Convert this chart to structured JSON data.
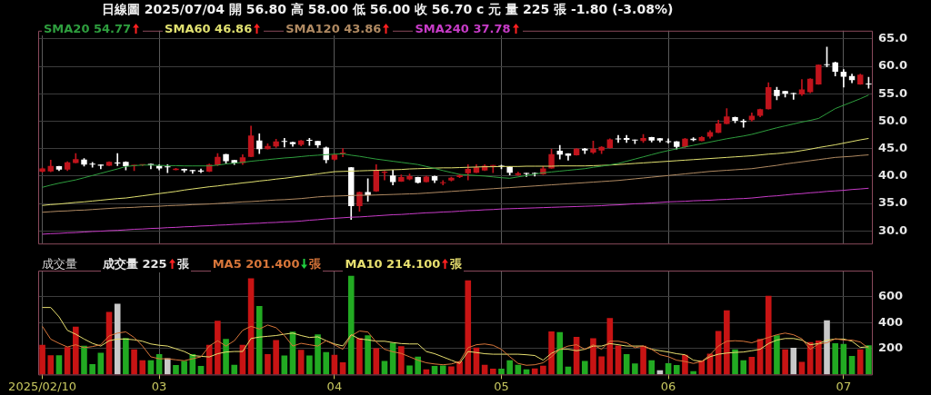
{
  "chart_data": [
    {
      "type": "candlestick",
      "title": "日線圖 2025/07/04 開 56.80 高 58.00 低 56.00 收 56.70 c 元 量 225 張 -1.80 (-3.08%)",
      "categories": [
        "2025/02/10",
        null,
        null,
        null,
        null,
        null,
        null,
        null,
        null,
        null,
        null,
        null,
        null,
        null,
        "03",
        null,
        null,
        null,
        null,
        null,
        null,
        null,
        null,
        null,
        null,
        null,
        null,
        null,
        null,
        null,
        null,
        null,
        null,
        null,
        null,
        "04",
        null,
        null,
        null,
        null,
        null,
        null,
        null,
        null,
        null,
        null,
        null,
        null,
        null,
        null,
        null,
        null,
        null,
        null,
        null,
        "05",
        null,
        null,
        null,
        null,
        null,
        null,
        null,
        null,
        null,
        null,
        null,
        null,
        null,
        null,
        null,
        null,
        null,
        null,
        null,
        "06",
        null,
        null,
        null,
        null,
        null,
        null,
        null,
        null,
        null,
        null,
        null,
        null,
        null,
        null,
        null,
        null,
        null,
        null,
        null,
        null,
        "07",
        null,
        null,
        null
      ],
      "ohlc": [
        [
          40.8,
          41.5,
          40.7,
          41.4
        ],
        [
          40.85,
          42.9,
          40.8,
          41.85
        ],
        [
          41.8,
          41.8,
          41.0,
          41.2
        ],
        [
          41.2,
          42.6,
          41.0,
          42.5
        ],
        [
          42.4,
          44.1,
          42.4,
          43.1
        ],
        [
          43.0,
          43.2,
          41.8,
          42.1
        ],
        [
          42.15,
          42.5,
          41.6,
          42.1
        ],
        [
          42.1,
          42.1,
          41.3,
          41.9
        ],
        [
          41.9,
          42.6,
          41.9,
          42.6
        ],
        [
          42.4,
          44.1,
          41.9,
          42.3
        ],
        [
          42.6,
          42.6,
          41.1,
          41.8
        ],
        [
          41.9,
          42.0,
          41.0,
          42.0
        ],
        [
          42.0,
          42.1,
          41.9,
          42.05
        ],
        [
          42.2,
          42.2,
          41.3,
          41.95
        ],
        [
          41.9,
          42.1,
          41.1,
          41.4
        ],
        [
          41.65,
          42.1,
          40.6,
          41.6
        ],
        [
          41.1,
          41.4,
          41.1,
          41.35
        ],
        [
          41.3,
          41.3,
          40.7,
          41.0
        ],
        [
          41.1,
          41.1,
          40.5,
          40.9
        ],
        [
          41.0,
          41.3,
          40.6,
          40.8
        ],
        [
          40.8,
          42.2,
          40.8,
          42.1
        ],
        [
          42.0,
          44.1,
          41.9,
          43.5
        ],
        [
          44.0,
          44.0,
          42.3,
          42.7
        ],
        [
          42.9,
          42.9,
          42.1,
          42.3
        ],
        [
          42.4,
          43.9,
          42.1,
          43.4
        ],
        [
          43.5,
          49.1,
          43.5,
          47.4
        ],
        [
          46.5,
          47.7,
          44.1,
          44.9
        ],
        [
          44.9,
          45.9,
          44.9,
          45.5
        ],
        [
          45.4,
          46.7,
          45.2,
          46.3
        ],
        [
          46.3,
          46.9,
          45.3,
          46.25
        ],
        [
          46.2,
          46.2,
          45.4,
          45.8
        ],
        [
          45.7,
          46.5,
          45.5,
          46.5
        ],
        [
          46.5,
          46.9,
          45.6,
          46.45
        ],
        [
          46.4,
          46.4,
          45.2,
          45.6
        ],
        [
          45.2,
          45.3,
          42.4,
          42.9
        ],
        [
          43.0,
          44.0,
          42.9,
          43.9
        ],
        [
          44.1,
          45.0,
          43.5,
          44.2
        ],
        [
          41.6,
          41.6,
          32.1,
          34.5
        ],
        [
          34.5,
          37.1,
          33.6,
          37.1
        ],
        [
          37.1,
          39.5,
          35.4,
          36.5
        ],
        [
          37.2,
          42.1,
          37.2,
          41.0
        ],
        [
          40.6,
          40.9,
          39.3,
          40.8
        ],
        [
          40.1,
          41.1,
          38.4,
          38.9
        ],
        [
          39.0,
          40.2,
          39.0,
          39.8
        ],
        [
          39.4,
          40.4,
          39.3,
          40.0
        ],
        [
          39.8,
          39.8,
          38.7,
          38.8
        ],
        [
          38.9,
          40.0,
          38.9,
          39.9
        ],
        [
          40.0,
          40.0,
          38.8,
          39.2
        ],
        [
          38.7,
          39.2,
          38.4,
          38.75
        ],
        [
          39.2,
          39.8,
          39.1,
          39.7
        ],
        [
          39.8,
          40.3,
          39.7,
          40.2
        ],
        [
          40.5,
          42.1,
          39.3,
          41.3
        ],
        [
          40.6,
          42.1,
          40.6,
          41.6
        ],
        [
          41.0,
          42.1,
          41.0,
          41.9
        ],
        [
          41.85,
          41.95,
          40.6,
          41.9
        ],
        [
          41.8,
          42.0,
          41.3,
          41.7
        ],
        [
          41.7,
          41.75,
          40.2,
          40.6
        ],
        [
          40.2,
          40.7,
          40.1,
          40.5
        ],
        [
          40.45,
          40.5,
          39.9,
          40.4
        ],
        [
          40.5,
          40.6,
          40.0,
          40.4
        ],
        [
          40.3,
          41.8,
          40.3,
          41.4
        ],
        [
          41.4,
          44.9,
          41.4,
          44.0
        ],
        [
          44.6,
          45.6,
          43.1,
          43.9
        ],
        [
          44.1,
          44.1,
          42.9,
          43.7
        ],
        [
          43.8,
          45.0,
          43.8,
          45.0
        ],
        [
          45.0,
          45.05,
          44.1,
          44.65
        ],
        [
          44.3,
          46.4,
          44.1,
          45.0
        ],
        [
          44.65,
          45.4,
          44.1,
          45.3
        ],
        [
          45.1,
          46.8,
          45.1,
          46.7
        ],
        [
          46.8,
          47.4,
          46.1,
          46.7
        ],
        [
          46.95,
          47.4,
          46.1,
          46.6
        ],
        [
          46.6,
          46.6,
          45.9,
          46.5
        ],
        [
          46.4,
          47.6,
          46.1,
          46.95
        ],
        [
          47.1,
          47.1,
          46.2,
          46.5
        ],
        [
          46.9,
          46.9,
          46.2,
          46.5
        ],
        [
          46.25,
          46.8,
          46.0,
          46.2
        ],
        [
          46.3,
          46.3,
          44.9,
          45.3
        ],
        [
          45.3,
          46.9,
          45.2,
          46.8
        ],
        [
          46.8,
          47.0,
          46.4,
          46.55
        ],
        [
          46.4,
          47.2,
          46.4,
          47.1
        ],
        [
          47.2,
          48.3,
          46.9,
          48.0
        ],
        [
          47.9,
          50.2,
          47.9,
          49.6
        ],
        [
          49.5,
          52.3,
          49.5,
          50.85
        ],
        [
          50.75,
          50.75,
          49.7,
          50.1
        ],
        [
          50.1,
          50.3,
          48.9,
          49.85
        ],
        [
          50.2,
          51.5,
          50.0,
          51.0
        ],
        [
          51.0,
          52.2,
          50.8,
          52.2
        ],
        [
          52.2,
          57.0,
          52.2,
          56.2
        ],
        [
          55.7,
          56.2,
          53.9,
          54.6
        ],
        [
          55.5,
          55.5,
          54.4,
          55.0
        ],
        [
          55.1,
          55.1,
          54.0,
          54.95
        ],
        [
          54.9,
          57.6,
          54.7,
          55.8
        ],
        [
          55.3,
          57.75,
          55.2,
          57.75
        ],
        [
          56.7,
          60.3,
          56.7,
          60.3
        ],
        [
          60.3,
          63.5,
          59.9,
          60.2
        ],
        [
          60.7,
          60.8,
          58.25,
          59.0
        ],
        [
          59.0,
          59.4,
          56.2,
          58.1
        ],
        [
          58.25,
          58.6,
          57.0,
          57.5
        ],
        [
          56.7,
          58.6,
          56.7,
          58.5
        ],
        [
          56.8,
          58.0,
          56.0,
          56.7
        ]
      ],
      "colors": [
        "#c0141c",
        "#c0141c",
        "#ffffff",
        "#c0141c",
        "#c0141c",
        "#ffffff",
        "#ffffff",
        "#ffffff",
        "#c0141c",
        "#ffffff",
        "#ffffff",
        "#c0141c",
        "#c0141c",
        "#ffffff",
        "#ffffff",
        "#ffffff",
        "#c0141c",
        "#ffffff",
        "#ffffff",
        "#ffffff",
        "#c0141c",
        "#c0141c",
        "#ffffff",
        "#ffffff",
        "#c0141c",
        "#c0141c",
        "#ffffff",
        "#c0141c",
        "#c0141c",
        "#ffffff",
        "#ffffff",
        "#c0141c",
        "#ffffff",
        "#ffffff",
        "#ffffff",
        "#c0141c",
        "#c0141c",
        "#ffffff",
        "#c0141c",
        "#ffffff",
        "#c0141c",
        "#c0141c",
        "#ffffff",
        "#c0141c",
        "#c0141c",
        "#ffffff",
        "#c0141c",
        "#ffffff",
        "#c0141c",
        "#c0141c",
        "#c0141c",
        "#c0141c",
        "#c0141c",
        "#c0141c",
        "#c0141c",
        "#ffffff",
        "#ffffff",
        "#c0141c",
        "#ffffff",
        "#ffffff",
        "#c0141c",
        "#c0141c",
        "#ffffff",
        "#ffffff",
        "#c0141c",
        "#ffffff",
        "#c0141c",
        "#c0141c",
        "#c0141c",
        "#ffffff",
        "#ffffff",
        "#ffffff",
        "#c0141c",
        "#ffffff",
        "#ffffff",
        "#ffffff",
        "#ffffff",
        "#c0141c",
        "#ffffff",
        "#c0141c",
        "#c0141c",
        "#c0141c",
        "#c0141c",
        "#ffffff",
        "#ffffff",
        "#c0141c",
        "#c0141c",
        "#c0141c",
        "#ffffff",
        "#ffffff",
        "#ffffff",
        "#c0141c",
        "#c0141c",
        "#c0141c",
        "#ffffff",
        "#ffffff",
        "#ffffff",
        "#ffffff",
        "#c0141c",
        "#ffffff"
      ],
      "series": [
        {
          "name": "SMA20 54.77",
          "type": "line",
          "color": "#2e9e3e",
          "values": [
            37.95,
            38.35,
            38.7,
            39.0,
            39.3,
            39.7,
            40.1,
            40.5,
            40.9,
            41.3,
            41.75,
            41.9,
            42.0,
            42.0,
            41.95,
            41.9,
            41.9,
            41.85,
            41.85,
            41.85,
            41.85,
            42.0,
            42.2,
            42.35,
            42.5,
            42.7,
            42.85,
            43.0,
            43.15,
            43.3,
            43.4,
            43.55,
            43.7,
            43.8,
            43.9,
            44.0,
            44.05,
            43.8,
            43.6,
            43.35,
            43.1,
            42.9,
            42.7,
            42.5,
            42.3,
            42.1,
            41.75,
            41.4,
            41.0,
            40.65,
            40.3,
            40.2,
            40.1,
            40.0,
            39.85,
            39.7,
            39.6,
            39.85,
            40.1,
            40.35,
            40.6,
            40.75,
            40.9,
            41.05,
            41.2,
            41.35,
            41.6,
            41.8,
            42.05,
            42.3,
            42.7,
            43.1,
            43.5,
            43.9,
            44.3,
            44.65,
            44.95,
            45.3,
            45.6,
            45.9,
            46.2,
            46.5,
            46.8,
            47.05,
            47.3,
            47.6,
            48.0,
            48.4,
            48.8,
            49.15,
            49.5,
            49.85,
            50.15,
            50.5,
            51.4,
            52.3,
            52.9,
            53.5,
            54.1,
            54.77
          ]
        },
        {
          "name": "SMA60 46.86",
          "type": "line",
          "color": "#e0e070",
          "values": [
            34.65,
            34.8,
            34.9,
            35.05,
            35.2,
            35.3,
            35.45,
            35.6,
            35.75,
            35.9,
            36.0,
            36.2,
            36.4,
            36.6,
            36.8,
            37.0,
            37.2,
            37.45,
            37.65,
            37.85,
            38.05,
            38.2,
            38.4,
            38.55,
            38.75,
            38.9,
            39.1,
            39.25,
            39.45,
            39.6,
            39.8,
            40.0,
            40.2,
            40.4,
            40.6,
            40.8,
            40.85,
            40.9,
            40.95,
            41.0,
            41.05,
            41.1,
            41.15,
            41.2,
            41.3,
            41.35,
            41.4,
            41.45,
            41.5,
            41.5,
            41.55,
            41.6,
            41.65,
            41.7,
            41.7,
            41.75,
            41.75,
            41.75,
            41.8,
            41.8,
            41.8,
            41.8,
            41.85,
            41.85,
            41.85,
            41.85,
            41.9,
            41.95,
            42.0,
            42.1,
            42.2,
            42.3,
            42.4,
            42.5,
            42.6,
            42.7,
            42.8,
            42.9,
            43.0,
            43.1,
            43.2,
            43.3,
            43.4,
            43.5,
            43.6,
            43.7,
            43.85,
            44.0,
            44.1,
            44.25,
            44.4,
            44.65,
            44.9,
            45.2,
            45.45,
            45.7,
            46.0,
            46.3,
            46.6,
            46.86
          ]
        },
        {
          "name": "SMA120 43.86",
          "type": "line",
          "color": "#b08a62",
          "values": [
            33.4,
            33.5,
            33.6,
            33.65,
            33.75,
            33.8,
            33.9,
            34.0,
            34.1,
            34.2,
            34.25,
            34.3,
            34.4,
            34.45,
            34.5,
            34.6,
            34.65,
            34.7,
            34.8,
            34.85,
            34.9,
            35.0,
            35.1,
            35.2,
            35.3,
            35.35,
            35.45,
            35.55,
            35.65,
            35.7,
            35.8,
            35.9,
            36.05,
            36.2,
            36.3,
            36.35,
            36.4,
            36.45,
            36.5,
            36.5,
            36.55,
            36.6,
            36.65,
            36.7,
            36.75,
            36.8,
            36.9,
            37.0,
            37.1,
            37.2,
            37.3,
            37.4,
            37.5,
            37.6,
            37.7,
            37.8,
            37.9,
            38.0,
            38.1,
            38.2,
            38.3,
            38.4,
            38.5,
            38.6,
            38.7,
            38.8,
            38.9,
            39.0,
            39.1,
            39.2,
            39.35,
            39.5,
            39.65,
            39.8,
            39.95,
            40.1,
            40.25,
            40.4,
            40.55,
            40.7,
            40.85,
            40.95,
            41.05,
            41.15,
            41.25,
            41.35,
            41.55,
            41.75,
            41.95,
            42.2,
            42.4,
            42.6,
            42.8,
            43.0,
            43.2,
            43.4,
            43.5,
            43.6,
            43.75,
            43.86
          ]
        },
        {
          "name": "SMA240 37.78",
          "type": "line",
          "color": "#c83cc8",
          "values": [
            29.4,
            29.5,
            29.55,
            29.65,
            29.7,
            29.8,
            29.9,
            29.95,
            30.05,
            30.1,
            30.2,
            30.3,
            30.35,
            30.45,
            30.5,
            30.6,
            30.65,
            30.75,
            30.8,
            30.9,
            30.95,
            31.05,
            31.1,
            31.2,
            31.25,
            31.35,
            31.4,
            31.5,
            31.55,
            31.65,
            31.7,
            31.8,
            31.95,
            32.05,
            32.2,
            32.3,
            32.4,
            32.5,
            32.55,
            32.65,
            32.75,
            32.85,
            32.95,
            33.0,
            33.1,
            33.2,
            33.3,
            33.35,
            33.45,
            33.5,
            33.6,
            33.7,
            33.75,
            33.85,
            33.9,
            34.0,
            34.05,
            34.1,
            34.15,
            34.2,
            34.25,
            34.3,
            34.35,
            34.4,
            34.45,
            34.5,
            34.55,
            34.6,
            34.7,
            34.75,
            34.85,
            34.95,
            35.0,
            35.1,
            35.2,
            35.3,
            35.35,
            35.4,
            35.5,
            35.55,
            35.6,
            35.7,
            35.75,
            35.85,
            35.9,
            36.0,
            36.15,
            36.3,
            36.4,
            36.55,
            36.7,
            36.8,
            36.95,
            37.05,
            37.2,
            37.3,
            37.4,
            37.55,
            37.65,
            37.78
          ]
        }
      ],
      "ylim": [
        27.7,
        66.5
      ],
      "yticks": [
        {
          "value": 30,
          "label": "30.0"
        },
        {
          "value": 35,
          "label": "35.0"
        },
        {
          "value": 40,
          "label": "40.0"
        },
        {
          "value": 45,
          "label": "45.0"
        },
        {
          "value": 50,
          "label": "50.0"
        },
        {
          "value": 55,
          "label": "55.0"
        },
        {
          "value": 60,
          "label": "60.0"
        },
        {
          "value": 65,
          "label": "65.0"
        }
      ],
      "grid": true,
      "tick_labels": "y",
      "legend": "top left"
    },
    {
      "type": "bar",
      "title": "成交量",
      "categories": [
        "2025/02/10",
        null,
        null,
        null,
        null,
        null,
        null,
        null,
        null,
        null,
        null,
        null,
        null,
        null,
        "03",
        null,
        null,
        null,
        null,
        null,
        null,
        null,
        null,
        null,
        null,
        null,
        null,
        null,
        null,
        null,
        null,
        null,
        null,
        null,
        null,
        "04",
        null,
        null,
        null,
        null,
        null,
        null,
        null,
        null,
        null,
        null,
        null,
        null,
        null,
        null,
        null,
        null,
        null,
        null,
        null,
        "05",
        null,
        null,
        null,
        null,
        null,
        null,
        null,
        null,
        null,
        null,
        null,
        null,
        null,
        null,
        null,
        null,
        null,
        null,
        null,
        "06",
        null,
        null,
        null,
        null,
        null,
        null,
        null,
        null,
        null,
        null,
        null,
        null,
        null,
        null,
        null,
        null,
        null,
        null,
        null,
        null,
        "07",
        null,
        null,
        null
      ],
      "series": [
        {
          "name": "成交量 225 張",
          "values": [
            229,
            148,
            148,
            210,
            369,
            221,
            79,
            167,
            481,
            544,
            281,
            194,
            110,
            110,
            156,
            125,
            73,
            104,
            156,
            65,
            229,
            413,
            273,
            75,
            229,
            740,
            527,
            156,
            265,
            146,
            330,
            190,
            146,
            308,
            173,
            152,
            94,
            760,
            281,
            302,
            202,
            104,
            244,
            217,
            69,
            138,
            40,
            65,
            69,
            63,
            100,
            725,
            208,
            75,
            44,
            44,
            110,
            75,
            40,
            46,
            67,
            331,
            327,
            61,
            290,
            104,
            279,
            140,
            435,
            223,
            156,
            85,
            221,
            110,
            33,
            87,
            73,
            152,
            25,
            108,
            160,
            335,
            494,
            194,
            110,
            135,
            273,
            606,
            302,
            194,
            206,
            98,
            250,
            262,
            417,
            240,
            236,
            142,
            194,
            225
          ],
          "colors": [
            "#c81414",
            "#c81414",
            "#22aa22",
            "#c81414",
            "#c81414",
            "#22aa22",
            "#22aa22",
            "#22aa22",
            "#c81414",
            "#c8c8c8",
            "#22aa22",
            "#c81414",
            "#c81414",
            "#22aa22",
            "#22aa22",
            "#c8c8c8",
            "#22aa22",
            "#22aa22",
            "#22aa22",
            "#22aa22",
            "#c81414",
            "#c81414",
            "#22aa22",
            "#22aa22",
            "#c81414",
            "#c81414",
            "#22aa22",
            "#c81414",
            "#c81414",
            "#22aa22",
            "#22aa22",
            "#c81414",
            "#22aa22",
            "#22aa22",
            "#22aa22",
            "#c81414",
            "#c81414",
            "#22aa22",
            "#c81414",
            "#22aa22",
            "#c81414",
            "#22aa22",
            "#22aa22",
            "#c81414",
            "#22aa22",
            "#22aa22",
            "#c81414",
            "#22aa22",
            "#22aa22",
            "#c81414",
            "#c81414",
            "#c81414",
            "#c81414",
            "#c81414",
            "#c81414",
            "#22aa22",
            "#22aa22",
            "#22aa22",
            "#22aa22",
            "#c81414",
            "#c81414",
            "#c81414",
            "#22aa22",
            "#22aa22",
            "#c81414",
            "#22aa22",
            "#c81414",
            "#c81414",
            "#c81414",
            "#c81414",
            "#22aa22",
            "#22aa22",
            "#c81414",
            "#22aa22",
            "#c8c8c8",
            "#22aa22",
            "#22aa22",
            "#c81414",
            "#22aa22",
            "#c81414",
            "#c81414",
            "#c81414",
            "#c81414",
            "#22aa22",
            "#22aa22",
            "#c81414",
            "#c81414",
            "#c81414",
            "#22aa22",
            "#c81414",
            "#c8c8c8",
            "#c81414",
            "#c81414",
            "#c81414",
            "#c8c8c8",
            "#22aa22",
            "#22aa22",
            "#22aa22",
            "#c81414",
            "#22aa22"
          ]
        },
        {
          "name": "MA5 201.400 張",
          "type": "line",
          "color": "#d8763a",
          "values": [
            371,
            272,
            240,
            212,
            229,
            206,
            215,
            229,
            297,
            319,
            328,
            285,
            219,
            136,
            121,
            121,
            113,
            106,
            121,
            136,
            219,
            260,
            219,
            260,
            340,
            371,
            350,
            381,
            360,
            300,
            219,
            240,
            229,
            219,
            260,
            229,
            194,
            298,
            335,
            327,
            250,
            194,
            175,
            162,
            136,
            110,
            90,
            81,
            75,
            81,
            100,
            206,
            229,
            235,
            225,
            194,
            137,
            85,
            71,
            75,
            90,
            137,
            194,
            219,
            229,
            194,
            229,
            194,
            256,
            256,
            244,
            206,
            219,
            194,
            152,
            137,
            110,
            100,
            85,
            100,
            152,
            219,
            256,
            260,
            256,
            244,
            265,
            285,
            306,
            319,
            306,
            275,
            194,
            235,
            244,
            275,
            265,
            265,
            250,
            201.4
          ]
        },
        {
          "name": "MA10 214.100 張",
          "type": "line",
          "color": "#e8e070",
          "values": [
            516,
            516,
            444,
            340,
            310,
            273,
            240,
            219,
            260,
            273,
            273,
            267,
            256,
            235,
            225,
            219,
            198,
            177,
            146,
            140,
            135,
            160,
            173,
            177,
            177,
            277,
            288,
            294,
            300,
            310,
            319,
            300,
            285,
            290,
            260,
            235,
            220,
            306,
            273,
            267,
            256,
            256,
            246,
            238,
            235,
            235,
            177,
            160,
            135,
            110,
            85,
            177,
            169,
            160,
            156,
            156,
            156,
            156,
            152,
            146,
            110,
            163,
            194,
            194,
            183,
            194,
            219,
            219,
            238,
            229,
            219,
            219,
            219,
            194,
            183,
            173,
            160,
            152,
            110,
            100,
            137,
            156,
            165,
            170,
            173,
            183,
            194,
            238,
            265,
            277,
            277,
            265,
            229,
            238,
            265,
            273,
            273,
            256,
            208,
            214.1
          ]
        }
      ],
      "ylim": [
        0,
        800
      ],
      "yticks": [
        200,
        400,
        600
      ],
      "grid": true,
      "legend": "top left"
    }
  ]
}
